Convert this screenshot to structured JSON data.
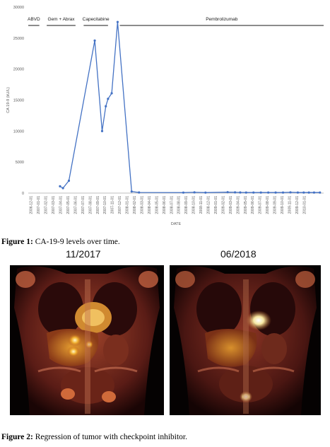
{
  "chart_data": {
    "type": "line",
    "ylabel": "CA 19-9 (kU/L)",
    "xlabel": "DATE",
    "ylim": [
      0,
      30000
    ],
    "yticks": [
      0,
      5000,
      10000,
      15000,
      20000,
      25000,
      30000
    ],
    "categories": [
      "2006-12-01",
      "2007-01-01",
      "2007-02-01",
      "2007-03-01",
      "2007-04-01",
      "2007-05-01",
      "2007-06-01",
      "2007-07-01",
      "2007-08-01",
      "2007-09-01",
      "2007-10-01",
      "2007-11-01",
      "2007-12-01",
      "2008-01-01",
      "2008-02-01",
      "2008-03-01",
      "2008-04-01",
      "2008-05-01",
      "2008-06-01",
      "2008-07-01",
      "2008-08-01",
      "2008-09-01",
      "2008-10-01",
      "2008-11-01",
      "2008-12-01",
      "2009-01-01",
      "2009-02-01",
      "2009-03-01",
      "2009-04-01",
      "2009-05-01",
      "2009-06-01",
      "2009-07-01",
      "2009-08-01",
      "2009-09-01",
      "2009-10-01",
      "2009-11-01",
      "2009-12-01",
      "2010-01-01"
    ],
    "series": [
      {
        "points": [
          {
            "x": 4.3,
            "y": 1100
          },
          {
            "x": 4.7,
            "y": 800
          },
          {
            "x": 5.5,
            "y": 2000
          },
          {
            "x": 9.0,
            "y": 24600
          },
          {
            "x": 10.0,
            "y": 10000
          },
          {
            "x": 10.5,
            "y": 14000
          },
          {
            "x": 10.8,
            "y": 15200
          },
          {
            "x": 11.3,
            "y": 16100
          },
          {
            "x": 12.1,
            "y": 27600
          },
          {
            "x": 14.0,
            "y": 250
          },
          {
            "x": 15.0,
            "y": 100
          },
          {
            "x": 21.0,
            "y": 80
          },
          {
            "x": 22.5,
            "y": 120
          },
          {
            "x": 24.0,
            "y": 80
          },
          {
            "x": 27.0,
            "y": 150
          },
          {
            "x": 28.0,
            "y": 120
          },
          {
            "x": 28.7,
            "y": 100
          },
          {
            "x": 29.5,
            "y": 90
          },
          {
            "x": 30.5,
            "y": 90
          },
          {
            "x": 31.5,
            "y": 90
          },
          {
            "x": 32.5,
            "y": 90
          },
          {
            "x": 33.5,
            "y": 90
          },
          {
            "x": 34.5,
            "y": 90
          },
          {
            "x": 35.5,
            "y": 120
          },
          {
            "x": 36.5,
            "y": 90
          },
          {
            "x": 37.3,
            "y": 90
          },
          {
            "x": 38.0,
            "y": 90
          },
          {
            "x": 38.7,
            "y": 90
          },
          {
            "x": 39.5,
            "y": 90
          }
        ]
      }
    ],
    "annotations": [
      {
        "label": "ABVD",
        "start": 0,
        "end": 1.5
      },
      {
        "label": "Gem + Abrax",
        "start": 2.5,
        "end": 6.4
      },
      {
        "label": "Capecitabine",
        "start": 7.5,
        "end": 10.8
      },
      {
        "label": "Pembrolizumab",
        "start": 12.4,
        "end": 40.0
      }
    ],
    "grid": false,
    "line_color": "#4472c4"
  },
  "figure1": {
    "label": "Figure 1:",
    "text": " CA-19-9 levels over time."
  },
  "figure2": {
    "label": "Figure 2:",
    "text": " Regression of tumor with checkpoint inhibitor."
  },
  "panels": {
    "left_label": "11/2017",
    "right_label": "06/2018"
  }
}
